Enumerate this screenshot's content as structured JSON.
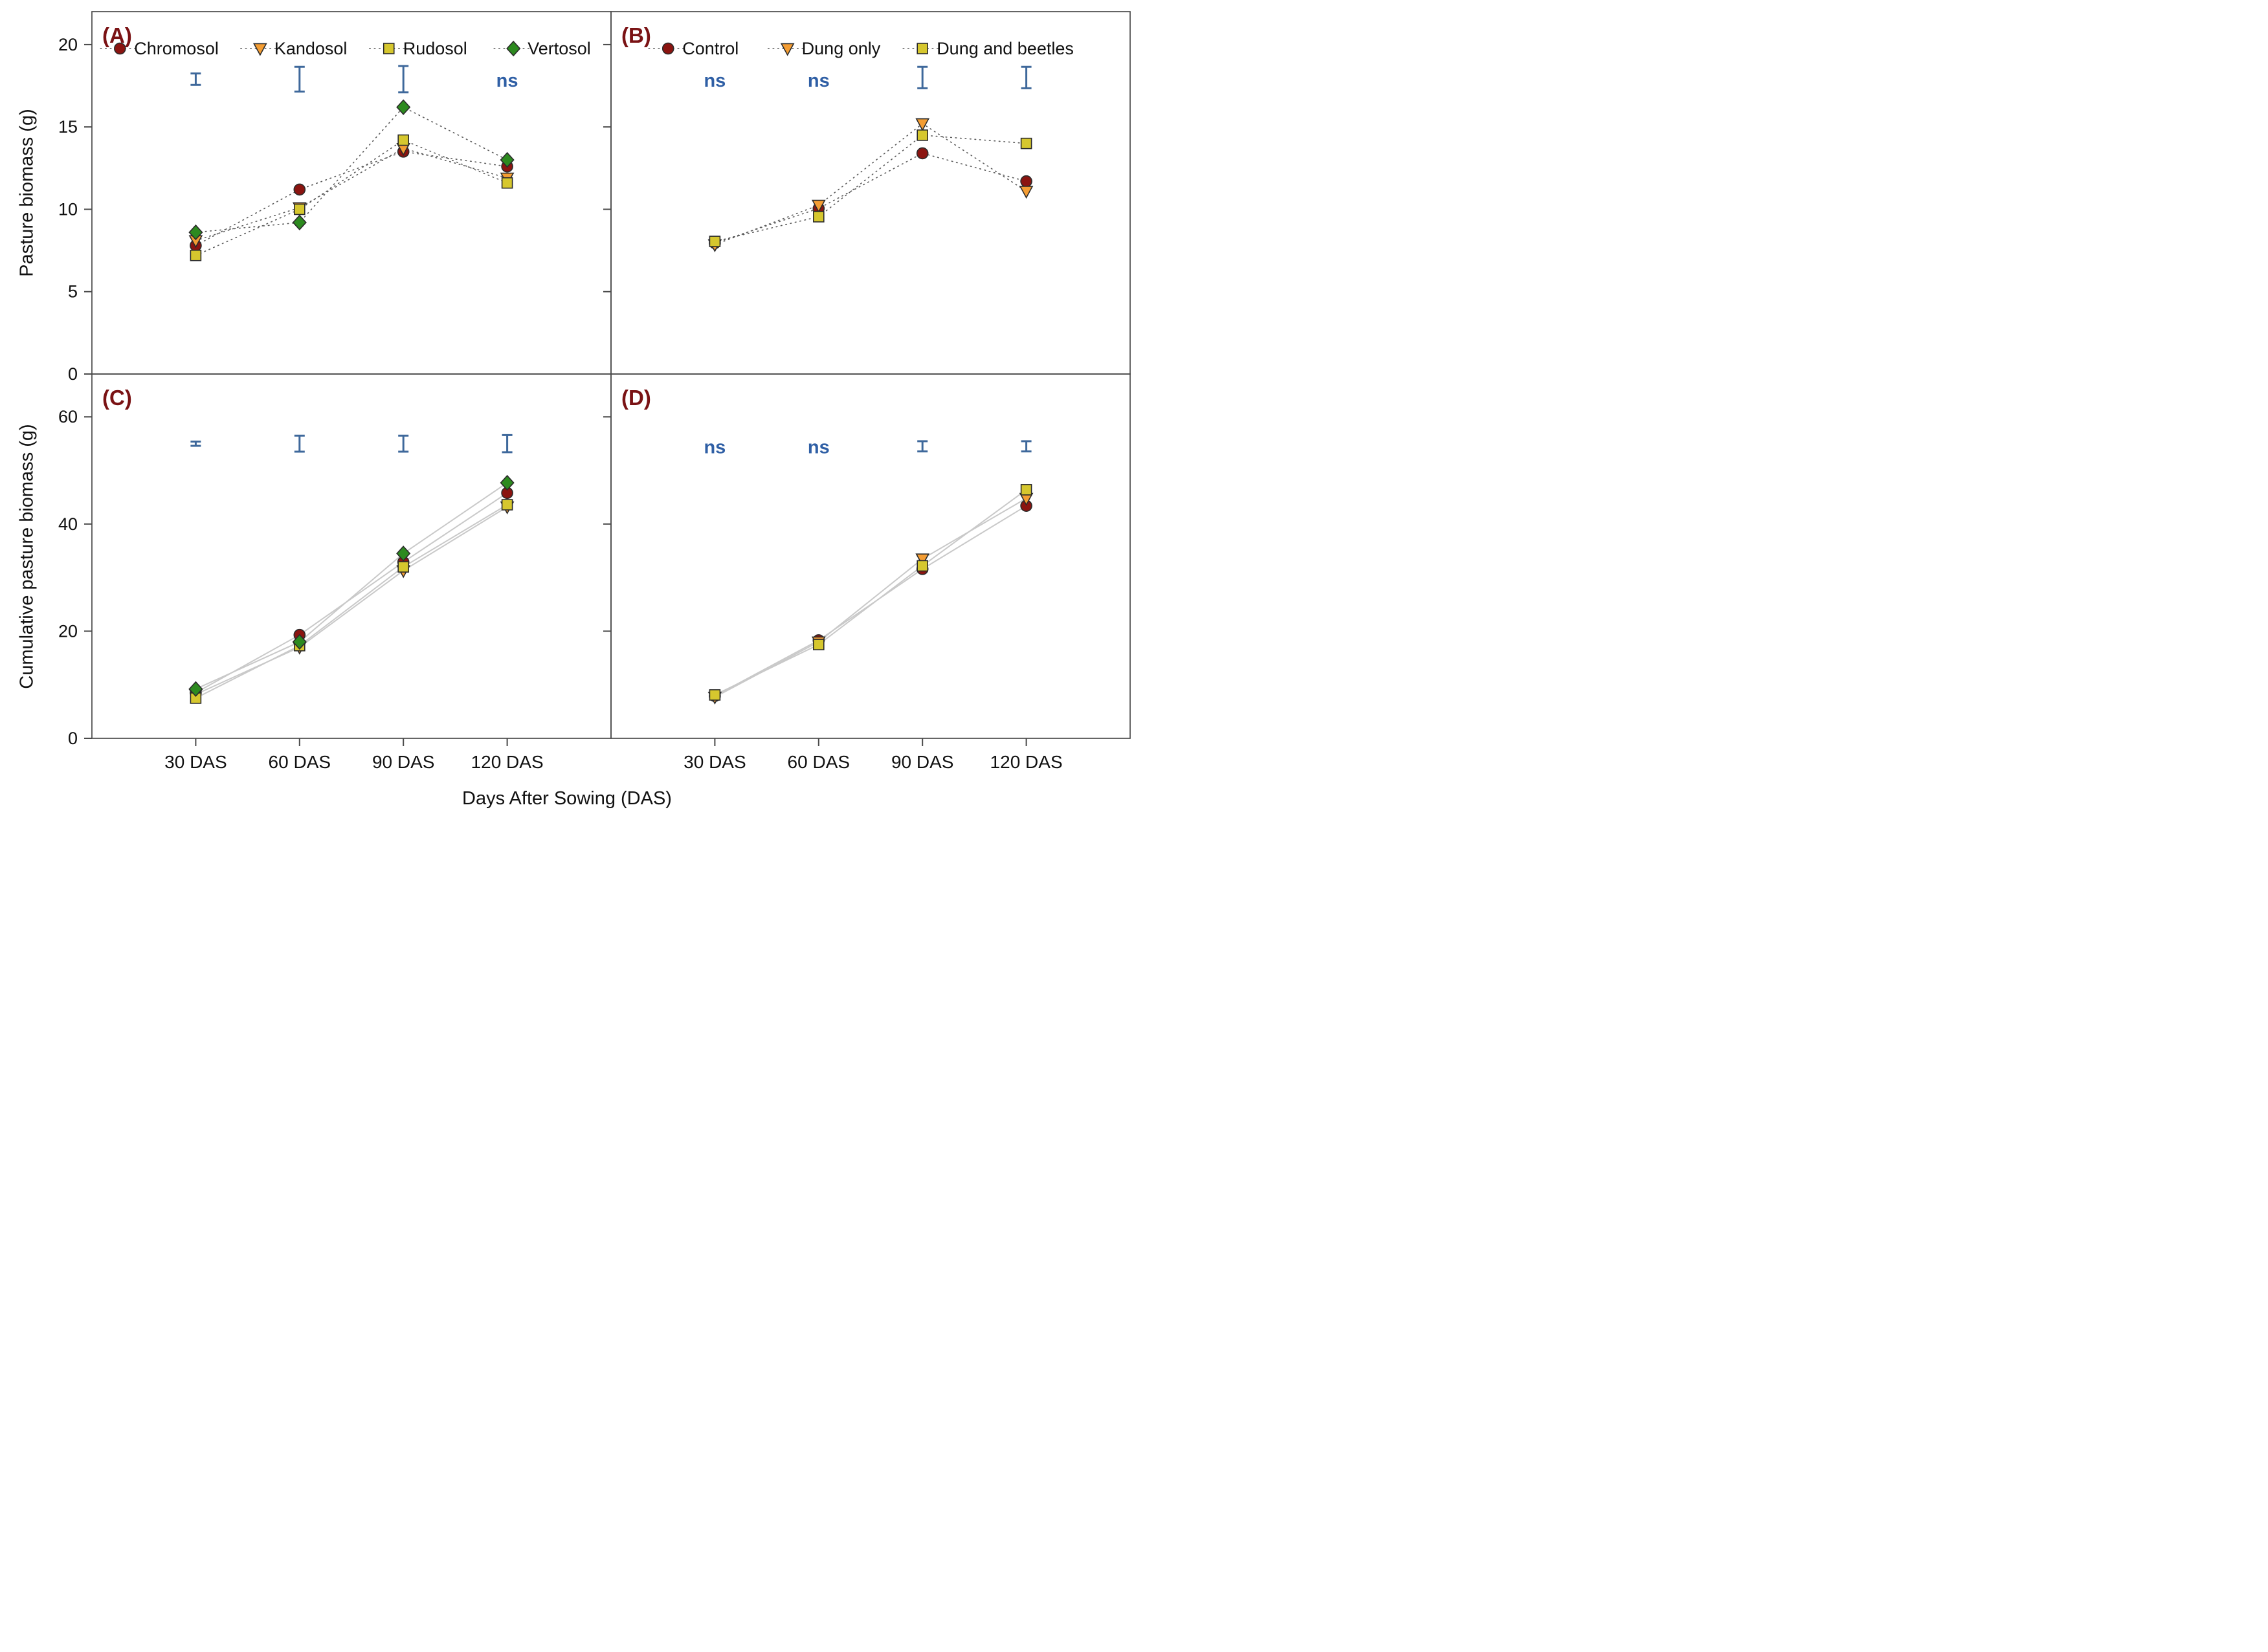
{
  "chart_data": {
    "type": "line",
    "x_axis_title": "Days After Sowing (DAS)",
    "x_categories": [
      "30 DAS",
      "60 DAS",
      "90 DAS",
      "120 DAS"
    ],
    "style": {
      "error_bar_color": "#3E689B",
      "ns_color": "#2F5FA5",
      "panel_label_color": "#7A1214",
      "frame_color": "#4a4a4a",
      "dotted_line_color": "#5a5a5a",
      "solid_line_color": "#c9c9c9",
      "marker_stroke": "#2b2b2b",
      "tick_text_color": "#111111"
    },
    "panels": [
      {
        "id": "A",
        "label": "(A)",
        "ylabel": "Pasture biomass (g)",
        "ylim": [
          0,
          22
        ],
        "yticks": [
          0,
          5,
          10,
          15,
          20
        ],
        "show_ytick_labels": true,
        "line_style": "dotted",
        "show_legend": true,
        "series": [
          {
            "name": "Chromosol",
            "marker": "circle",
            "color": "#8B1410",
            "values": [
              7.8,
              11.2,
              13.5,
              12.6
            ]
          },
          {
            "name": "Kandosol",
            "marker": "triangle",
            "color": "#F49D33",
            "values": [
              8.1,
              10.1,
              13.7,
              11.9
            ]
          },
          {
            "name": "Rudosol",
            "marker": "square",
            "color": "#D6C72E",
            "values": [
              7.2,
              10.0,
              14.2,
              11.6
            ]
          },
          {
            "name": "Vertosol",
            "marker": "diamond",
            "color": "#2D8A1F",
            "values": [
              8.6,
              9.2,
              16.2,
              13.0
            ]
          }
        ],
        "annotations": [
          {
            "type": "errorbar",
            "x_index": 0,
            "center": 17.9,
            "half": 0.35
          },
          {
            "type": "errorbar",
            "x_index": 1,
            "center": 17.9,
            "half": 0.75
          },
          {
            "type": "errorbar",
            "x_index": 2,
            "center": 17.9,
            "half": 0.8
          },
          {
            "type": "ns",
            "x_index": 3,
            "y": 17.8,
            "text": "ns"
          }
        ]
      },
      {
        "id": "B",
        "label": "(B)",
        "ylabel": null,
        "ylim": [
          0,
          22
        ],
        "yticks": [
          5,
          10,
          15,
          20
        ],
        "show_ytick_labels": false,
        "line_style": "dotted",
        "show_legend": true,
        "series": [
          {
            "name": "Control",
            "marker": "circle",
            "color": "#8B1410",
            "values": [
              7.95,
              10.05,
              13.4,
              11.7
            ]
          },
          {
            "name": "Dung only",
            "marker": "triangle",
            "color": "#F49D33",
            "values": [
              7.85,
              10.25,
              15.2,
              11.1
            ]
          },
          {
            "name": "Dung and beetles",
            "marker": "square",
            "color": "#D6C72E",
            "values": [
              8.05,
              9.55,
              14.5,
              14.0
            ]
          }
        ],
        "annotations": [
          {
            "type": "ns",
            "x_index": 0,
            "y": 17.8,
            "text": "ns"
          },
          {
            "type": "ns",
            "x_index": 1,
            "y": 17.8,
            "text": "ns"
          },
          {
            "type": "errorbar",
            "x_index": 2,
            "center": 18.0,
            "half": 0.65
          },
          {
            "type": "errorbar",
            "x_index": 3,
            "center": 18.0,
            "half": 0.65
          }
        ]
      },
      {
        "id": "C",
        "label": "(C)",
        "ylabel": "Cumulative pasture biomass (g)",
        "ylim": [
          0,
          68
        ],
        "yticks": [
          0,
          20,
          40,
          60
        ],
        "show_ytick_labels": true,
        "line_style": "solid",
        "show_legend": false,
        "series": [
          {
            "name": "Chromosol",
            "marker": "circle",
            "color": "#8B1410",
            "values": [
              8.5,
              19.3,
              32.9,
              45.8
            ]
          },
          {
            "name": "Kandosol",
            "marker": "triangle",
            "color": "#F49D33",
            "values": [
              8.2,
              17.0,
              31.3,
              43.2
            ]
          },
          {
            "name": "Rudosol",
            "marker": "square",
            "color": "#D6C72E",
            "values": [
              7.5,
              17.3,
              32.0,
              43.6
            ]
          },
          {
            "name": "Vertosol",
            "marker": "diamond",
            "color": "#2D8A1F",
            "values": [
              9.2,
              18.0,
              34.5,
              47.7
            ]
          }
        ],
        "annotations": [
          {
            "type": "errorbar",
            "x_index": 0,
            "center": 55.0,
            "half": 0.4
          },
          {
            "type": "errorbar",
            "x_index": 1,
            "center": 55.0,
            "half": 1.5
          },
          {
            "type": "errorbar",
            "x_index": 2,
            "center": 55.0,
            "half": 1.5
          },
          {
            "type": "errorbar",
            "x_index": 3,
            "center": 55.0,
            "half": 1.6
          }
        ]
      },
      {
        "id": "D",
        "label": "(D)",
        "ylabel": null,
        "ylim": [
          0,
          68
        ],
        "yticks": [
          20,
          40,
          60
        ],
        "show_ytick_labels": false,
        "line_style": "solid",
        "show_legend": false,
        "series": [
          {
            "name": "Control",
            "marker": "circle",
            "color": "#8B1410",
            "values": [
              7.9,
              18.3,
              31.6,
              43.4
            ]
          },
          {
            "name": "Dung only",
            "marker": "triangle",
            "color": "#F49D33",
            "values": [
              7.7,
              18.0,
              33.5,
              44.8
            ]
          },
          {
            "name": "Dung and beetles",
            "marker": "square",
            "color": "#D6C72E",
            "values": [
              8.1,
              17.5,
              32.2,
              46.4
            ]
          }
        ],
        "annotations": [
          {
            "type": "ns",
            "x_index": 0,
            "y": 54.3,
            "text": "ns"
          },
          {
            "type": "ns",
            "x_index": 1,
            "y": 54.3,
            "text": "ns"
          },
          {
            "type": "errorbar",
            "x_index": 2,
            "center": 54.5,
            "half": 0.95
          },
          {
            "type": "errorbar",
            "x_index": 3,
            "center": 54.5,
            "half": 0.95
          }
        ]
      }
    ]
  }
}
